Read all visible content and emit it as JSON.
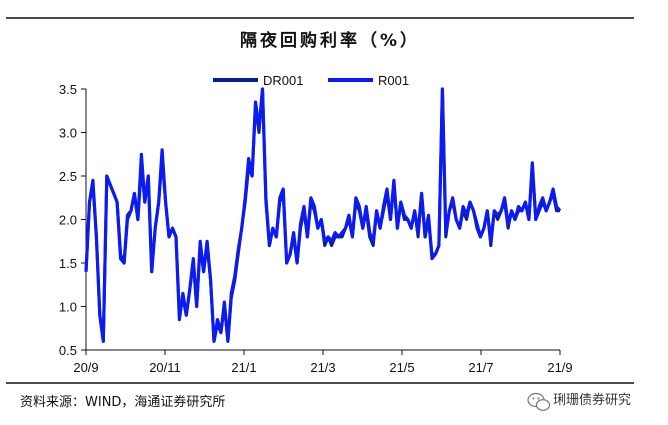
{
  "chart_data": {
    "type": "line",
    "title": "隔夜回购利率（%）",
    "xlabel": "",
    "ylabel": "",
    "ylim": [
      0.5,
      3.5
    ],
    "yticks": [
      "0.5",
      "1.0",
      "1.5",
      "2.0",
      "2.5",
      "3.0",
      "3.5"
    ],
    "xticks": [
      "20/9",
      "20/11",
      "21/1",
      "21/3",
      "21/5",
      "21/7",
      "21/9"
    ],
    "legend_position": "top-center",
    "grid": false,
    "series": [
      {
        "name": "DR001",
        "color": "#0a1f8f",
        "values": [
          1.4,
          2.2,
          2.4,
          1.8,
          0.9,
          0.6,
          2.5,
          2.4,
          2.3,
          2.2,
          1.6,
          1.5,
          2.0,
          2.1,
          2.3,
          2.0,
          2.6,
          2.2,
          2.5,
          1.4,
          1.9,
          2.2,
          2.7,
          2.2,
          1.8,
          1.9,
          1.8,
          0.9,
          1.1,
          0.9,
          1.2,
          1.5,
          1.0,
          1.7,
          1.4,
          1.7,
          1.3,
          0.6,
          0.8,
          0.7,
          1.0,
          0.6,
          1.1,
          1.3,
          1.6,
          1.9,
          2.2,
          2.6,
          2.5,
          3.3,
          3.0,
          3.5,
          2.2,
          1.7,
          1.9,
          1.8,
          2.2,
          2.3,
          1.5,
          1.6,
          1.8,
          1.5,
          1.9,
          2.1,
          1.8,
          2.2,
          2.1,
          1.9,
          2.0,
          1.7,
          1.8,
          1.7,
          1.8,
          1.8,
          1.8,
          1.9,
          2.0,
          1.8,
          2.2,
          2.1,
          1.9,
          2.1,
          1.8,
          1.7,
          2.1,
          1.9,
          2.1,
          2.3,
          2.0,
          2.4,
          1.9,
          2.2,
          2.0,
          2.0,
          1.9,
          2.1,
          1.8,
          2.3,
          1.8,
          2.0,
          1.6,
          1.6,
          1.7,
          3.5,
          1.8,
          2.1,
          2.2,
          2.0,
          1.9,
          2.1,
          2.0,
          2.2,
          2.1,
          1.9,
          1.8,
          1.9,
          2.1,
          1.7,
          2.1,
          2.0,
          2.1,
          2.2,
          1.9,
          2.1,
          2.0,
          2.1,
          2.1,
          2.2,
          2.0,
          2.6,
          2.0,
          2.1,
          2.2,
          2.1,
          2.2,
          2.3,
          2.1,
          2.1
        ]
      },
      {
        "name": "R001",
        "color": "#0c1cf0",
        "values": [
          1.4,
          2.2,
          2.45,
          1.8,
          0.9,
          0.6,
          2.5,
          2.4,
          2.3,
          2.2,
          1.55,
          1.5,
          2.05,
          2.1,
          2.3,
          2.0,
          2.75,
          2.2,
          2.5,
          1.4,
          1.9,
          2.2,
          2.8,
          2.2,
          1.8,
          1.9,
          1.8,
          0.85,
          1.15,
          0.9,
          1.2,
          1.55,
          1.0,
          1.75,
          1.4,
          1.75,
          1.3,
          0.6,
          0.85,
          0.7,
          1.05,
          0.6,
          1.15,
          1.35,
          1.65,
          1.9,
          2.25,
          2.7,
          2.5,
          3.35,
          3.05,
          3.5,
          2.25,
          1.7,
          1.9,
          1.8,
          2.25,
          2.35,
          1.5,
          1.6,
          1.85,
          1.5,
          1.95,
          2.15,
          1.8,
          2.25,
          2.15,
          1.9,
          2.0,
          1.75,
          1.8,
          1.75,
          1.85,
          1.8,
          1.85,
          1.9,
          2.05,
          1.8,
          2.25,
          2.15,
          1.9,
          2.15,
          1.85,
          1.75,
          2.1,
          1.9,
          2.15,
          2.35,
          2.0,
          2.45,
          1.9,
          2.2,
          2.05,
          2.0,
          1.9,
          2.1,
          1.85,
          2.3,
          1.8,
          2.05,
          1.55,
          1.6,
          1.7,
          3.5,
          1.85,
          2.1,
          2.25,
          2.0,
          1.9,
          2.15,
          2.05,
          2.2,
          2.1,
          1.95,
          1.8,
          1.9,
          2.1,
          1.75,
          2.1,
          2.05,
          2.1,
          2.25,
          1.95,
          2.1,
          2.0,
          2.15,
          2.1,
          2.2,
          2.0,
          2.65,
          2.0,
          2.15,
          2.25,
          2.1,
          2.2,
          2.35,
          2.15,
          2.1
        ]
      }
    ]
  },
  "source": "资料来源：WIND，海通证券研究所",
  "watermark": "琍珊债券研究",
  "watermark_icon": "wechat-icon"
}
